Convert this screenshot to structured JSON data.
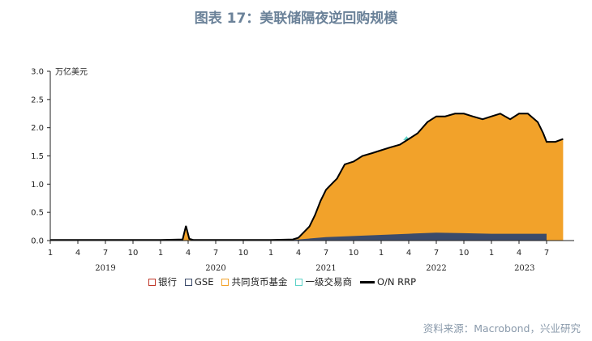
{
  "title": "图表 17：美联储隔夜逆回购规模",
  "source": "资料来源：Macrobond，兴业研究",
  "colors": {
    "bank": "#c0392b",
    "gse": "#3b4b6b",
    "mmf": "#f2a22a",
    "dealer": "#5fd3c8",
    "total": "#000000"
  },
  "chart_data": {
    "type": "area",
    "unit_label": "万亿美元",
    "ylim": [
      0,
      3.0
    ],
    "yticks": [
      "0.0",
      "0.5",
      "1.0",
      "1.5",
      "2.0",
      "2.5",
      "3.0"
    ],
    "xticks": [
      {
        "label": "1",
        "t": 2019.0
      },
      {
        "label": "4",
        "t": 2019.25
      },
      {
        "label": "7",
        "t": 2019.5
      },
      {
        "label": "10",
        "t": 2019.75
      },
      {
        "label": "1",
        "t": 2020.0
      },
      {
        "label": "4",
        "t": 2020.25
      },
      {
        "label": "7",
        "t": 2020.5
      },
      {
        "label": "10",
        "t": 2020.75
      },
      {
        "label": "1",
        "t": 2021.0
      },
      {
        "label": "4",
        "t": 2021.25
      },
      {
        "label": "7",
        "t": 2021.5
      },
      {
        "label": "10",
        "t": 2021.75
      },
      {
        "label": "1",
        "t": 2022.0
      },
      {
        "label": "4",
        "t": 2022.25
      },
      {
        "label": "7",
        "t": 2022.5
      },
      {
        "label": "10",
        "t": 2022.75
      },
      {
        "label": "1",
        "t": 2023.0
      },
      {
        "label": "4",
        "t": 2023.25
      },
      {
        "label": "7",
        "t": 2023.5
      }
    ],
    "years": [
      {
        "label": "2019",
        "t": 2019.5
      },
      {
        "label": "2020",
        "t": 2020.5
      },
      {
        "label": "2021",
        "t": 2021.5
      },
      {
        "label": "2022",
        "t": 2022.5
      },
      {
        "label": "2023",
        "t": 2023.3
      }
    ],
    "xlim": [
      2019.0,
      2023.75
    ],
    "legend": [
      {
        "name": "银行",
        "key": "bank",
        "style": "box"
      },
      {
        "name": "GSE",
        "key": "gse",
        "style": "box"
      },
      {
        "name": "共同货币基金",
        "key": "mmf",
        "style": "box"
      },
      {
        "name": "一级交易商",
        "key": "dealer",
        "style": "box"
      },
      {
        "name": "O/N RRP",
        "key": "total",
        "style": "line"
      }
    ],
    "total": [
      [
        2019.0,
        0.01
      ],
      [
        2019.5,
        0.01
      ],
      [
        2020.0,
        0.01
      ],
      [
        2020.2,
        0.02
      ],
      [
        2020.23,
        0.26
      ],
      [
        2020.26,
        0.03
      ],
      [
        2020.3,
        0.01
      ],
      [
        2020.8,
        0.01
      ],
      [
        2021.0,
        0.01
      ],
      [
        2021.2,
        0.02
      ],
      [
        2021.25,
        0.05
      ],
      [
        2021.3,
        0.15
      ],
      [
        2021.35,
        0.25
      ],
      [
        2021.4,
        0.45
      ],
      [
        2021.45,
        0.7
      ],
      [
        2021.5,
        0.9
      ],
      [
        2021.55,
        1.0
      ],
      [
        2021.6,
        1.1
      ],
      [
        2021.67,
        1.35
      ],
      [
        2021.75,
        1.4
      ],
      [
        2021.83,
        1.5
      ],
      [
        2021.92,
        1.55
      ],
      [
        2022.0,
        1.6
      ],
      [
        2022.08,
        1.65
      ],
      [
        2022.17,
        1.7
      ],
      [
        2022.25,
        1.8
      ],
      [
        2022.33,
        1.9
      ],
      [
        2022.42,
        2.1
      ],
      [
        2022.5,
        2.2
      ],
      [
        2022.58,
        2.2
      ],
      [
        2022.67,
        2.25
      ],
      [
        2022.75,
        2.25
      ],
      [
        2022.83,
        2.2
      ],
      [
        2022.92,
        2.15
      ],
      [
        2023.0,
        2.2
      ],
      [
        2023.08,
        2.25
      ],
      [
        2023.17,
        2.15
      ],
      [
        2023.25,
        2.25
      ],
      [
        2023.33,
        2.25
      ],
      [
        2023.42,
        2.1
      ],
      [
        2023.47,
        1.9
      ],
      [
        2023.5,
        1.75
      ],
      [
        2023.58,
        1.75
      ],
      [
        2023.65,
        1.8
      ]
    ],
    "gse": [
      [
        2021.0,
        0.0
      ],
      [
        2021.25,
        0.02
      ],
      [
        2021.5,
        0.06
      ],
      [
        2021.75,
        0.08
      ],
      [
        2022.0,
        0.1
      ],
      [
        2022.25,
        0.12
      ],
      [
        2022.5,
        0.14
      ],
      [
        2022.75,
        0.13
      ],
      [
        2023.0,
        0.12
      ],
      [
        2023.25,
        0.12
      ],
      [
        2023.5,
        0.12
      ]
    ],
    "dealer": [
      [
        2022.2,
        1.78
      ],
      [
        2022.23,
        1.85
      ],
      [
        2022.26,
        1.78
      ]
    ]
  }
}
